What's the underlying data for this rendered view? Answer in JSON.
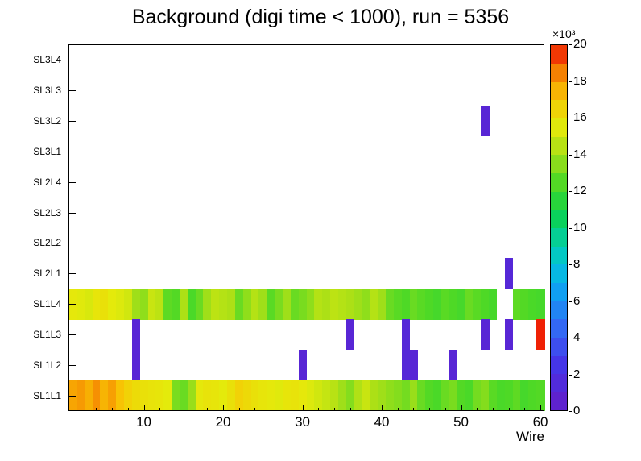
{
  "title": "Background (digi time < 1000), run = 5356",
  "x_axis": {
    "label": "Wire",
    "ticks": [
      10,
      20,
      30,
      40,
      50,
      60
    ],
    "minor_tick_step": 2,
    "range": [
      0.5,
      60.5
    ]
  },
  "y_axis": {
    "labels_top_to_bottom": [
      "SL3L4",
      "SL3L3",
      "SL3L2",
      "SL3L1",
      "SL2L4",
      "SL2L3",
      "SL2L2",
      "SL2L1",
      "SL1L4",
      "SL1L3",
      "SL1L2",
      "SL1L1"
    ]
  },
  "colorbar": {
    "exponent_label": "×10³",
    "tick_values": [
      0,
      2,
      4,
      6,
      8,
      10,
      12,
      14,
      16,
      18,
      20
    ],
    "zmin": 0,
    "zmax": 20000,
    "n_contours": 20,
    "palette_stops": [
      [
        0.0,
        "#641ec8"
      ],
      [
        0.12,
        "#4632e6"
      ],
      [
        0.22,
        "#3565f4"
      ],
      [
        0.32,
        "#119df2"
      ],
      [
        0.4,
        "#02c4dc"
      ],
      [
        0.47,
        "#04cf9a"
      ],
      [
        0.54,
        "#0bd24b"
      ],
      [
        0.62,
        "#4ed926"
      ],
      [
        0.7,
        "#a4df18"
      ],
      [
        0.78,
        "#e4ea0b"
      ],
      [
        0.86,
        "#f8c304"
      ],
      [
        0.93,
        "#f57c02"
      ],
      [
        1.0,
        "#ee1205"
      ]
    ]
  },
  "chart_data": {
    "type": "heatmap",
    "title": "Background (digi time < 1000), run = 5356",
    "xlabel": "Wire",
    "x_range": [
      1,
      60
    ],
    "rows_top_to_bottom": [
      "SL3L4",
      "SL3L3",
      "SL3L2",
      "SL3L1",
      "SL2L4",
      "SL2L3",
      "SL2L2",
      "SL2L1",
      "SL1L4",
      "SL1L3",
      "SL1L2",
      "SL1L1"
    ],
    "zmin": 0,
    "zmax": 20000,
    "band_rows": {
      "SL1L4": [
        15700,
        15500,
        15300,
        15800,
        16000,
        15600,
        15400,
        15100,
        13900,
        13600,
        14900,
        14600,
        12700,
        12500,
        14200,
        12300,
        12900,
        13900,
        14600,
        14400,
        14200,
        12900,
        13600,
        14400,
        13900,
        12600,
        13200,
        13900,
        12900,
        13200,
        13600,
        14400,
        14200,
        14600,
        14400,
        14200,
        13900,
        13600,
        14400,
        13900,
        12900,
        12600,
        12400,
        12900,
        12600,
        12400,
        12200,
        12600,
        12400,
        12200,
        12900,
        12600,
        12400,
        12200,
        0,
        0,
        12700,
        12500,
        12300,
        12200
      ],
      "SL1L1": [
        17800,
        18000,
        17600,
        18200,
        17500,
        17900,
        17200,
        16600,
        16200,
        16000,
        15900,
        15800,
        15600,
        13200,
        12900,
        13800,
        15700,
        15900,
        15800,
        15600,
        16000,
        16600,
        16300,
        16000,
        15800,
        15700,
        15500,
        15800,
        15900,
        15700,
        15400,
        15100,
        14800,
        14500,
        13900,
        13400,
        14300,
        14900,
        14200,
        13900,
        13600,
        13400,
        13100,
        13800,
        12900,
        12500,
        12300,
        12900,
        13200,
        12500,
        12300,
        13100,
        13400,
        12600,
        12300,
        12400,
        12700,
        12200,
        12400,
        12500
      ]
    },
    "sparse_cells": [
      {
        "row": "SL3L2",
        "wire": 53,
        "value": 1000
      },
      {
        "row": "SL2L1",
        "wire": 56,
        "value": 1200
      },
      {
        "row": "SL1L3",
        "wire": 9,
        "value": 1000
      },
      {
        "row": "SL1L3",
        "wire": 36,
        "value": 1000
      },
      {
        "row": "SL1L3",
        "wire": 43,
        "value": 1200
      },
      {
        "row": "SL1L3",
        "wire": 53,
        "value": 1000
      },
      {
        "row": "SL1L3",
        "wire": 56,
        "value": 1000
      },
      {
        "row": "SL1L3",
        "wire": 60,
        "value": 19800
      },
      {
        "row": "SL1L2",
        "wire": 9,
        "value": 1000
      },
      {
        "row": "SL1L2",
        "wire": 30,
        "value": 1000
      },
      {
        "row": "SL1L2",
        "wire": 43,
        "value": 1200
      },
      {
        "row": "SL1L2",
        "wire": 44,
        "value": 1000
      },
      {
        "row": "SL1L2",
        "wire": 49,
        "value": 1000
      }
    ]
  }
}
